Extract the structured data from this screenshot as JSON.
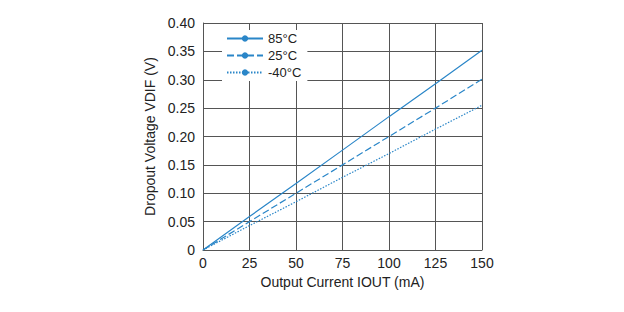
{
  "chart_data": {
    "type": "line",
    "x_label": "Output Current IOUT (mA)",
    "y_label": "Dropout Voltage VDIF (V)",
    "x": [
      0,
      25,
      50,
      75,
      100,
      125,
      150
    ],
    "series": [
      {
        "name": "85°C",
        "color": "#2a86c8",
        "line_style": "solid",
        "values": [
          0,
          0.059,
          0.117,
          0.176,
          0.235,
          0.293,
          0.352
        ]
      },
      {
        "name": "25°C",
        "color": "#2a86c8",
        "line_style": "dashed",
        "values": [
          0,
          0.05,
          0.1,
          0.15,
          0.2,
          0.25,
          0.301
        ]
      },
      {
        "name": "-40°C",
        "color": "#2a86c8",
        "line_style": "dotted",
        "values": [
          0,
          0.043,
          0.085,
          0.128,
          0.17,
          0.213,
          0.255
        ]
      }
    ],
    "xlim": [
      0,
      150
    ],
    "xticks": [
      0,
      25,
      50,
      75,
      100,
      125,
      150
    ],
    "ylim": [
      0,
      0.4
    ],
    "yticks": [
      0,
      0.05,
      {
        "value": 0.1,
        "label": "0.10"
      },
      0.15,
      {
        "value": 0.2,
        "label": "0.20"
      },
      0.25,
      {
        "value": 0.3,
        "label": "0.30"
      },
      0.35,
      {
        "value": 0.4,
        "label": "0.40"
      }
    ],
    "grid": true,
    "legend": "upper left"
  }
}
